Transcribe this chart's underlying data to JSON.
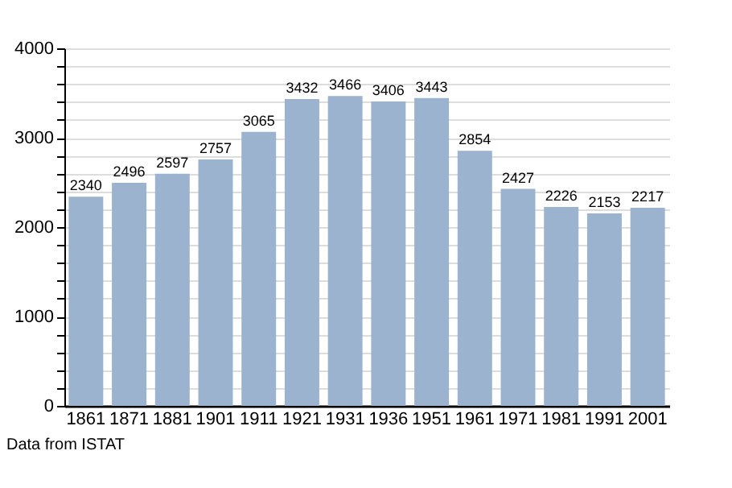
{
  "chart_data": {
    "type": "bar",
    "categories": [
      "1861",
      "1871",
      "1881",
      "1901",
      "1911",
      "1921",
      "1931",
      "1936",
      "1951",
      "1961",
      "1971",
      "1981",
      "1991",
      "2001"
    ],
    "values": [
      2340,
      2496,
      2597,
      2757,
      3065,
      3432,
      3466,
      3406,
      3443,
      2854,
      2427,
      2226,
      2153,
      2217
    ],
    "color": "#9bb3cf",
    "ylim": [
      0,
      4000
    ],
    "yticks": [
      0,
      {
        "value": 200,
        "label": null
      },
      {
        "value": 400,
        "label": null
      },
      {
        "value": 600,
        "label": null
      },
      {
        "value": 800,
        "label": null
      },
      1000,
      {
        "value": 1200,
        "label": null
      },
      {
        "value": 1400,
        "label": null
      },
      {
        "value": 1600,
        "label": null
      },
      {
        "value": 1800,
        "label": null
      },
      2000,
      {
        "value": 2200,
        "label": null
      },
      {
        "value": 2400,
        "label": null
      },
      {
        "value": 2600,
        "label": null
      },
      {
        "value": 2800,
        "label": null
      },
      3000,
      {
        "value": 3200,
        "label": null
      },
      {
        "value": 3400,
        "label": null
      },
      {
        "value": 3600,
        "label": null
      },
      {
        "value": 3800,
        "label": null
      },
      4000
    ],
    "grid": "y",
    "data_labels": true,
    "annotations": [
      "Data from ISTAT"
    ]
  }
}
